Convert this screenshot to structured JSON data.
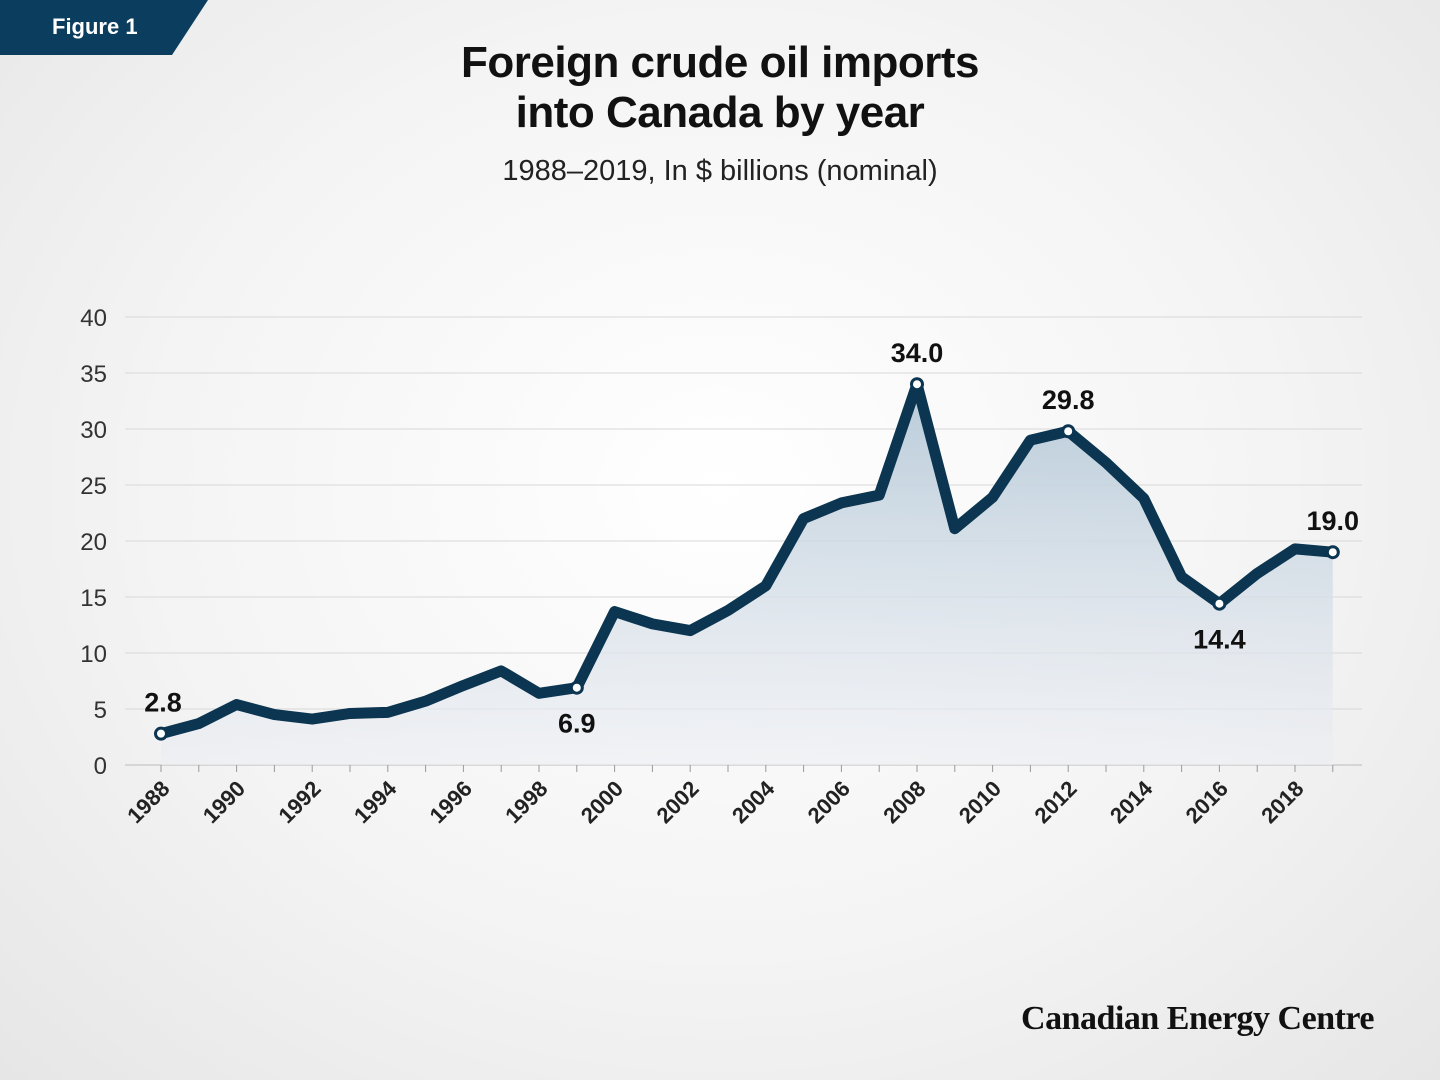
{
  "badge": {
    "label": "Figure 1"
  },
  "brand": "Canadian Energy Centre",
  "chart_data": {
    "type": "area",
    "title": "Foreign crude oil imports into Canada by year",
    "title_lines": [
      "Foreign crude oil imports",
      "into Canada by year"
    ],
    "subtitle": "1988–2019, In $ billions (nominal)",
    "xlabel": "",
    "ylabel": "",
    "ylim": [
      0,
      40
    ],
    "yticks": [
      0,
      5,
      10,
      15,
      20,
      25,
      30,
      35,
      40
    ],
    "xticks": [
      1988,
      1990,
      1992,
      1994,
      1996,
      1998,
      2000,
      2002,
      2004,
      2006,
      2008,
      2010,
      2012,
      2014,
      2016,
      2018
    ],
    "grid": true,
    "x": [
      1988,
      1989,
      1990,
      1991,
      1992,
      1993,
      1994,
      1995,
      1996,
      1997,
      1998,
      1999,
      2000,
      2001,
      2002,
      2003,
      2004,
      2005,
      2006,
      2007,
      2008,
      2009,
      2010,
      2011,
      2012,
      2013,
      2014,
      2015,
      2016,
      2017,
      2018,
      2019
    ],
    "values": [
      2.8,
      3.7,
      5.4,
      4.5,
      4.1,
      4.6,
      4.7,
      5.7,
      7.1,
      8.4,
      6.4,
      6.9,
      13.7,
      12.6,
      12.0,
      13.8,
      16.0,
      22.0,
      23.4,
      24.1,
      34.0,
      21.1,
      23.9,
      29.0,
      29.8,
      27.0,
      23.8,
      16.8,
      14.4,
      17.1,
      19.3,
      19.0
    ],
    "annotations": [
      {
        "year": 1988,
        "label": "2.8",
        "pos": "above"
      },
      {
        "year": 1999,
        "label": "6.9",
        "pos": "below"
      },
      {
        "year": 2008,
        "label": "34.0",
        "pos": "above"
      },
      {
        "year": 2012,
        "label": "29.8",
        "pos": "above"
      },
      {
        "year": 2016,
        "label": "14.4",
        "pos": "below"
      },
      {
        "year": 2019,
        "label": "19.0",
        "pos": "above"
      }
    ],
    "colors": {
      "line": "#0b3550",
      "fill_top": "#b8cbd9",
      "fill_bottom": "#eceef3",
      "badge": "#0b3e5e"
    }
  }
}
